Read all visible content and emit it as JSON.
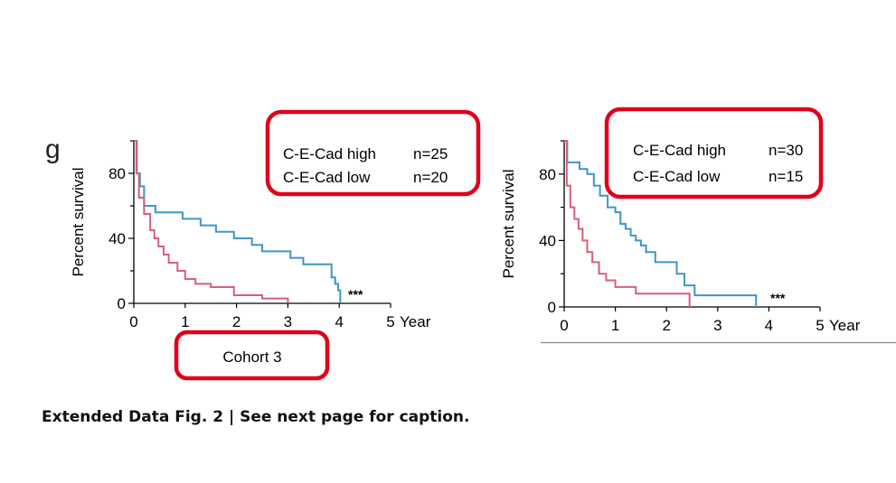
{
  "panel_letter": "g",
  "caption": "Extended Data Fig. 2 | See next page for caption.",
  "colors": {
    "high": "#3e96c4",
    "low": "#d65f79",
    "highlight": "#e0001a",
    "axis": "#000000"
  },
  "chart_data": [
    {
      "type": "line",
      "step": true,
      "name": "Cohort 3",
      "xlabel": "Year",
      "ylabel": "Percent survival",
      "xlim": [
        0,
        5
      ],
      "ylim": [
        0,
        100
      ],
      "x_ticks": [
        0,
        1,
        2,
        3,
        4,
        5
      ],
      "x_tick_labels": [
        "0",
        "1",
        "2",
        "3",
        "4",
        "5"
      ],
      "y_ticks": [
        0,
        40,
        80
      ],
      "y_tick_labels": [
        "0",
        "40",
        "80"
      ],
      "significance": "***",
      "legend_position": "top-right",
      "series": [
        {
          "name": "C-E-Cad high",
          "n_label": "n=25",
          "color": "#3e96c4",
          "x": [
            0,
            0.06,
            0.12,
            0.2,
            0.42,
            0.95,
            1.3,
            1.6,
            1.95,
            2.3,
            2.5,
            2.75,
            3.05,
            3.3,
            3.85,
            3.92,
            3.98,
            4.02
          ],
          "y": [
            100,
            80,
            72,
            60,
            56,
            52,
            48,
            44,
            40,
            36,
            32,
            32,
            28,
            24,
            16,
            12,
            8,
            0
          ]
        },
        {
          "name": "C-E-Cad low",
          "n_label": "n=20",
          "color": "#d65f79",
          "x": [
            0,
            0.05,
            0.1,
            0.2,
            0.32,
            0.4,
            0.48,
            0.58,
            0.68,
            0.85,
            1.0,
            1.2,
            1.5,
            1.95,
            2.5,
            3.0
          ],
          "y": [
            100,
            80,
            65,
            55,
            45,
            40,
            35,
            30,
            25,
            20,
            15,
            12,
            10,
            5,
            3,
            0
          ]
        }
      ]
    },
    {
      "type": "line",
      "step": true,
      "xlabel": "Year",
      "ylabel": "Percent survival",
      "xlim": [
        0,
        5
      ],
      "ylim": [
        0,
        100
      ],
      "x_ticks": [
        0,
        1,
        2,
        3,
        4,
        5
      ],
      "x_tick_labels": [
        "0",
        "1",
        "2",
        "3",
        "4",
        "5"
      ],
      "y_ticks": [
        0,
        40,
        80
      ],
      "y_tick_labels": [
        "0",
        "40",
        "80"
      ],
      "significance": "***",
      "legend_position": "top-right",
      "series": [
        {
          "name": "C-E-Cad high",
          "n_label": "n=30",
          "color": "#3e96c4",
          "x": [
            0,
            0.06,
            0.3,
            0.45,
            0.58,
            0.7,
            0.85,
            1.0,
            1.1,
            1.2,
            1.3,
            1.4,
            1.5,
            1.6,
            1.78,
            2.2,
            2.35,
            2.55,
            3.75
          ],
          "y": [
            100,
            87,
            83,
            80,
            73,
            67,
            60,
            57,
            50,
            47,
            43,
            40,
            37,
            33,
            27,
            20,
            13,
            7,
            0
          ]
        },
        {
          "name": "C-E-Cad low",
          "n_label": "n=15",
          "color": "#d65f79",
          "x": [
            0,
            0.05,
            0.12,
            0.2,
            0.28,
            0.36,
            0.45,
            0.55,
            0.68,
            0.82,
            1.0,
            1.4,
            2.45
          ],
          "y": [
            100,
            73,
            60,
            53,
            47,
            40,
            33,
            27,
            20,
            16,
            12,
            8,
            0
          ]
        }
      ]
    }
  ]
}
